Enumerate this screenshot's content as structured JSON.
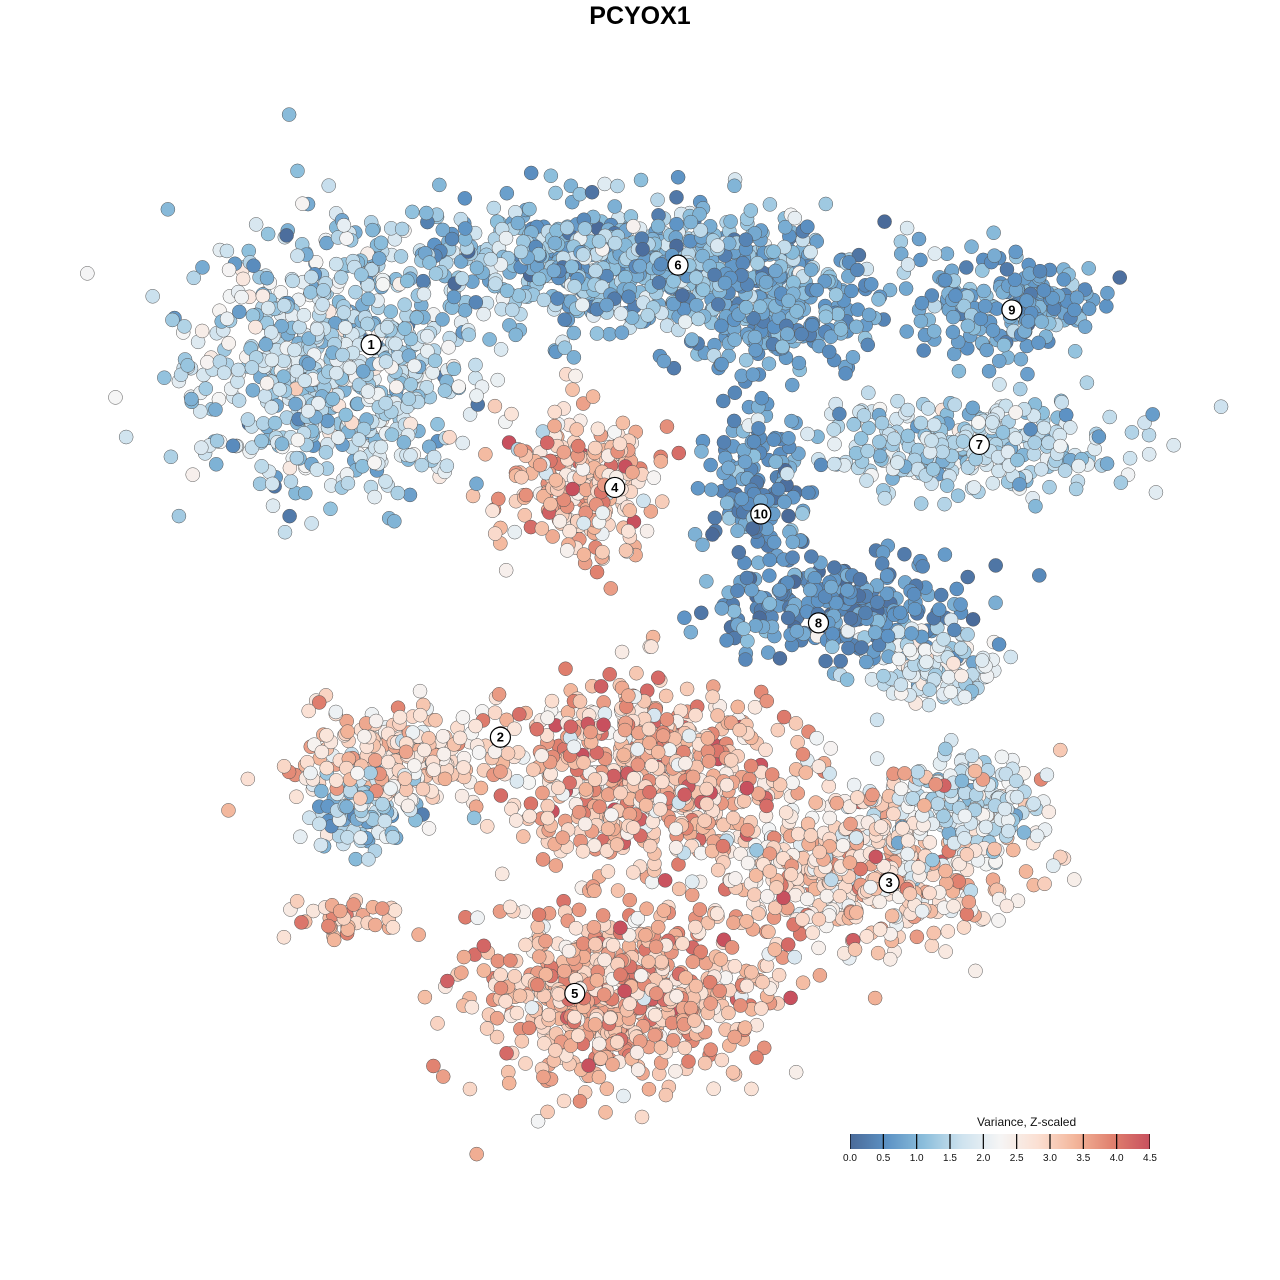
{
  "chart_data": {
    "type": "scatter",
    "title": "PCYOX1",
    "xlabel": "",
    "ylabel": "",
    "xlim": [
      0,
      100
    ],
    "ylim": [
      0,
      100
    ],
    "grid": false,
    "axes_visible": false,
    "colorbar": {
      "title": "Variance, Z-scaled",
      "range": [
        0,
        4.5
      ],
      "ticks": [
        "0.0",
        "0.5",
        "1.0",
        "1.5",
        "2.0",
        "2.5",
        "3.0",
        "3.5",
        "4.0",
        "4.5"
      ],
      "placement": "bottom-right",
      "colors": [
        "#4a6a99",
        "#5d93c5",
        "#8dbfdc",
        "#cfe3ef",
        "#f5f5f5",
        "#fbe0d3",
        "#f3b69b",
        "#e0806e",
        "#c8505e"
      ]
    },
    "clusters": [
      {
        "label": "1",
        "label_pos": [
          18.4,
          18.0
        ],
        "center": [
          14,
          21
        ],
        "spread": [
          11,
          10
        ],
        "n": 700,
        "value_mean": 1.5,
        "value_sd": 0.5
      },
      {
        "label": "6",
        "label_pos": [
          51.4,
          9.3
        ],
        "center": [
          45,
          9
        ],
        "spread": [
          17,
          5
        ],
        "n": 650,
        "value_mean": 1.1,
        "value_sd": 0.45
      },
      {
        "label": "",
        "label_pos": null,
        "center": [
          62,
          14
        ],
        "spread": [
          8,
          5
        ],
        "n": 250,
        "value_mean": 0.7,
        "value_sd": 0.3
      },
      {
        "label": "9",
        "label_pos": [
          87.3,
          14.2
        ],
        "center": [
          87,
          14
        ],
        "spread": [
          7,
          4
        ],
        "n": 180,
        "value_mean": 0.8,
        "value_sd": 0.3
      },
      {
        "label": "7",
        "label_pos": [
          83.8,
          28.9
        ],
        "center": [
          83,
          29
        ],
        "spread": [
          12,
          3.5
        ],
        "n": 300,
        "value_mean": 1.5,
        "value_sd": 0.4
      },
      {
        "label": "4",
        "label_pos": [
          44.6,
          33.6
        ],
        "center": [
          41,
          33
        ],
        "spread": [
          5.5,
          6
        ],
        "n": 260,
        "value_mean": 3.1,
        "value_sd": 0.6
      },
      {
        "label": "10",
        "label_pos": [
          60.3,
          36.5
        ],
        "center": [
          60,
          34
        ],
        "spread": [
          4,
          6
        ],
        "n": 140,
        "value_mean": 0.6,
        "value_sd": 0.3
      },
      {
        "label": "8",
        "label_pos": [
          66.5,
          48.4
        ],
        "center": [
          69,
          47
        ],
        "spread": [
          10,
          4
        ],
        "n": 260,
        "value_mean": 0.5,
        "value_sd": 0.3
      },
      {
        "label": "",
        "label_pos": null,
        "center": [
          78,
          53
        ],
        "spread": [
          5,
          3
        ],
        "n": 140,
        "value_mean": 1.8,
        "value_sd": 0.4
      },
      {
        "label": "2",
        "label_pos": [
          32.3,
          60.9
        ],
        "center": [
          22,
          63
        ],
        "spread": [
          8,
          4
        ],
        "n": 220,
        "value_mean": 2.9,
        "value_sd": 0.5
      },
      {
        "label": "",
        "label_pos": null,
        "center": [
          17,
          69
        ],
        "spread": [
          5,
          3
        ],
        "n": 110,
        "value_mean": 1.3,
        "value_sd": 0.4
      },
      {
        "label": "",
        "label_pos": null,
        "center": [
          48,
          65
        ],
        "spread": [
          11,
          7
        ],
        "n": 600,
        "value_mean": 3.2,
        "value_sd": 0.6
      },
      {
        "label": "3",
        "label_pos": [
          74.1,
          76.8
        ],
        "center": [
          71,
          75
        ],
        "spread": [
          12,
          6
        ],
        "n": 500,
        "value_mean": 2.9,
        "value_sd": 0.6
      },
      {
        "label": "",
        "label_pos": null,
        "center": [
          82,
          68
        ],
        "spread": [
          6,
          4
        ],
        "n": 180,
        "value_mean": 1.7,
        "value_sd": 0.4
      },
      {
        "label": "5",
        "label_pos": [
          40.3,
          88.9
        ],
        "center": [
          45,
          89
        ],
        "spread": [
          11,
          7
        ],
        "n": 650,
        "value_mean": 3.3,
        "value_sd": 0.5
      },
      {
        "label": "",
        "label_pos": null,
        "center": [
          16,
          81
        ],
        "spread": [
          5,
          1.8
        ],
        "n": 40,
        "value_mean": 3.2,
        "value_sd": 0.4
      }
    ]
  }
}
